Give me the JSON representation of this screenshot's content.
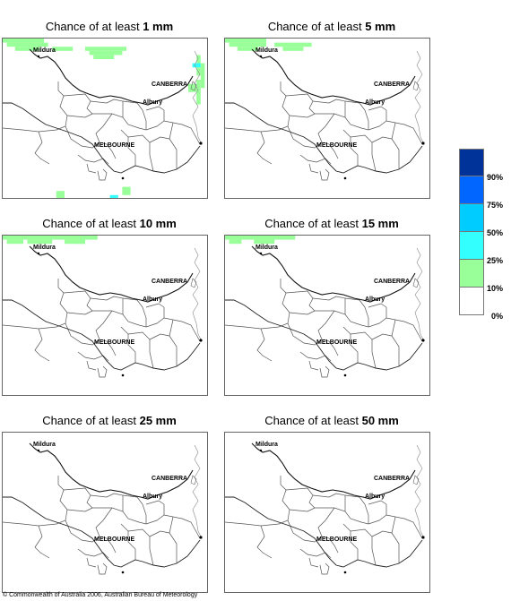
{
  "panels": [
    {
      "prefix": "Chance of at least ",
      "amount": "1 mm",
      "cells": [
        {
          "c": "#99ff99",
          "r": [
            [
              0,
              0,
              10,
              1
            ],
            [
              1,
              1,
              10,
              1
            ],
            [
              3,
              2,
              6,
              1
            ],
            [
              12,
              2,
              5,
              1
            ],
            [
              20,
              2,
              10,
              1
            ],
            [
              21,
              3,
              8,
              1
            ],
            [
              22,
              4,
              5,
              1
            ],
            [
              47,
              4,
              1,
              5
            ],
            [
              48,
              6,
              1,
              6
            ],
            [
              47,
              10,
              1,
              6
            ],
            [
              45,
              11,
              2,
              2
            ],
            [
              13,
              37,
              2,
              2
            ],
            [
              29,
              36,
              2,
              2
            ]
          ]
        },
        {
          "c": "#33ffff",
          "r": [
            [
              46,
              6,
              2,
              1
            ],
            [
              26,
              38,
              2,
              1
            ]
          ]
        },
        {
          "c": "#00ccff",
          "r": [
            [
              26,
              39,
              2,
              1
            ]
          ]
        },
        {
          "c": "#66ffff",
          "r": [
            [
              27,
              40,
              1,
              1
            ]
          ]
        }
      ]
    },
    {
      "prefix": "Chance of at least ",
      "amount": "5 mm",
      "cells": [
        {
          "c": "#99ff99",
          "r": [
            [
              0,
              0,
              10,
              1
            ],
            [
              1,
              1,
              9,
              1
            ],
            [
              3,
              2,
              5,
              1
            ],
            [
              12,
              1,
              9,
              1
            ],
            [
              14,
              2,
              5,
              1
            ]
          ]
        }
      ]
    },
    {
      "prefix": "Chance of at least ",
      "amount": "10 mm",
      "cells": [
        {
          "c": "#99ff99",
          "r": [
            [
              0,
              0,
              23,
              1
            ],
            [
              1,
              1,
              4,
              1
            ],
            [
              6,
              1,
              6,
              1
            ],
            [
              15,
              1,
              5,
              1
            ],
            [
              18,
              1,
              2,
              1
            ]
          ]
        }
      ]
    },
    {
      "prefix": "Chance of at least ",
      "amount": "15 mm",
      "cells": [
        {
          "c": "#99ff99",
          "r": [
            [
              0,
              0,
              17,
              1
            ],
            [
              1,
              1,
              3,
              1
            ],
            [
              7,
              1,
              5,
              1
            ]
          ]
        }
      ]
    },
    {
      "prefix": "Chance of at least ",
      "amount": "25 mm",
      "cells": []
    },
    {
      "prefix": "Chance of at least ",
      "amount": "50 mm",
      "cells": []
    }
  ],
  "places": {
    "mildura": "Mildura",
    "canberra": "CANBERRA",
    "albury": "Albury",
    "melbourne": "MELBOURNE"
  },
  "legend": {
    "colors": [
      "#003399",
      "#0066ff",
      "#00ccff",
      "#33ffff",
      "#99ff99",
      "#ffffff"
    ],
    "labels": [
      "90%",
      "75%",
      "50%",
      "25%",
      "10%",
      "0%"
    ]
  },
  "copyright": "© Commonwealth of Australia 2006, Australian Bureau of Meteorology"
}
